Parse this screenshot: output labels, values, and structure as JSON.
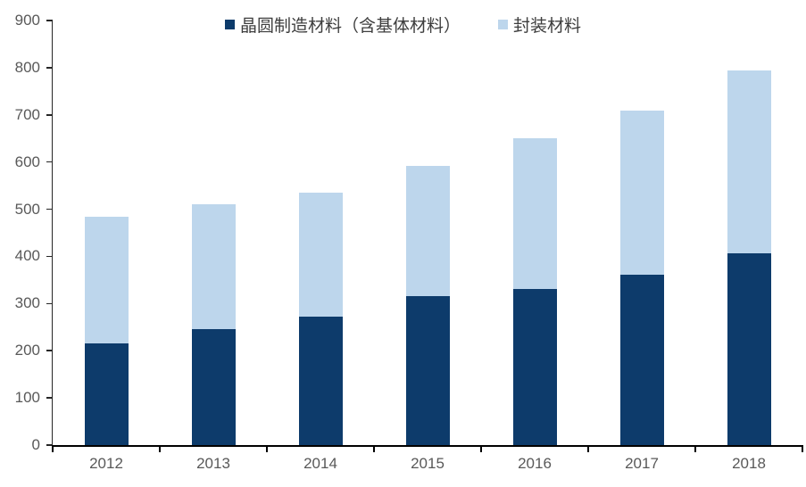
{
  "chart_data": {
    "type": "bar",
    "stacked": true,
    "title": "",
    "xlabel": "",
    "ylabel": "",
    "categories": [
      "2012",
      "2013",
      "2014",
      "2015",
      "2016",
      "2017",
      "2018"
    ],
    "series": [
      {
        "name": "晶圆制造材料（含基体材料）",
        "color": "#0d3b6b",
        "values": [
          215,
          245,
          273,
          315,
          330,
          362,
          406
        ]
      },
      {
        "name": "封装材料",
        "color": "#bdd6ec",
        "values": [
          270,
          265,
          262,
          277,
          320,
          347,
          389
        ]
      }
    ],
    "totals": [
      485,
      510,
      535,
      592,
      650,
      709,
      795
    ],
    "ylim": [
      0,
      900
    ],
    "yticks": [
      0,
      100,
      200,
      300,
      400,
      500,
      600,
      700,
      800,
      900
    ],
    "grid": false,
    "legend_position": "top-center"
  },
  "colors": {
    "background": "#ffffff",
    "axis_line": "#000000",
    "tick_label": "#595959",
    "legend_text": "#3d3d3d"
  }
}
